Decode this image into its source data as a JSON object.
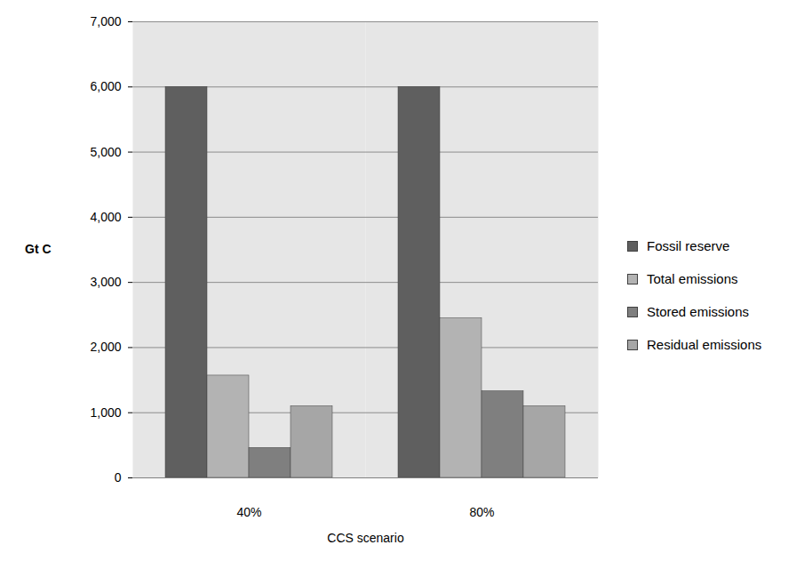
{
  "chart_data": {
    "type": "bar",
    "xlabel": "CCS scenario",
    "ylabel": "Gt C",
    "categories": [
      "40%",
      "80%"
    ],
    "series": [
      {
        "name": "Fossil reserve",
        "color": "#5f5f5f",
        "values": [
          6000,
          6000
        ]
      },
      {
        "name": "Total emissions",
        "color": "#b3b3b3",
        "values": [
          1570,
          2450
        ]
      },
      {
        "name": "Stored emissions",
        "color": "#7f7f7f",
        "values": [
          460,
          1330
        ]
      },
      {
        "name": "Residual emissions",
        "color": "#a6a6a6",
        "values": [
          1100,
          1100
        ]
      }
    ],
    "ylim": [
      0,
      7000
    ],
    "yticks": [
      0,
      1000,
      2000,
      3000,
      4000,
      5000,
      6000,
      7000
    ],
    "grid": true,
    "legend": "right"
  }
}
